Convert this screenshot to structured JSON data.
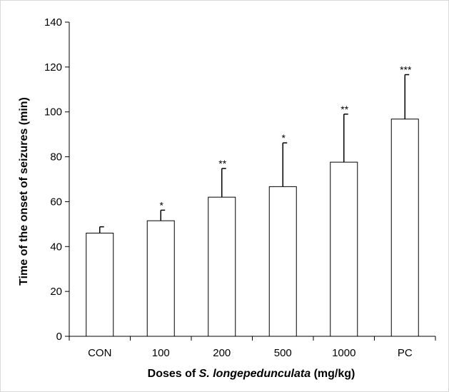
{
  "chart_data": {
    "type": "bar",
    "categories": [
      "CON",
      "100",
      "200",
      "500",
      "1000",
      "PC"
    ],
    "values": [
      46,
      51.5,
      62,
      66.7,
      77.6,
      96.8
    ],
    "errors": [
      2.8,
      4.7,
      12.8,
      19.5,
      21.4,
      19.8
    ],
    "significance": [
      "",
      "*",
      "**",
      "*",
      "**",
      "***"
    ],
    "title": "",
    "xlabel_parts": [
      "Doses of ",
      "S. longepedunculata",
      " (mg/kg)"
    ],
    "ylabel": "Time of the onset of seizures (min)",
    "ylim": [
      0,
      140
    ],
    "yticks": [
      "0",
      "20",
      "40",
      "60",
      "80",
      "100",
      "120",
      "140"
    ],
    "grid": false,
    "legend": "none",
    "colors": {
      "bar_fill": "#ffffff",
      "bar_stroke": "#000000",
      "axis": "#000000"
    }
  }
}
